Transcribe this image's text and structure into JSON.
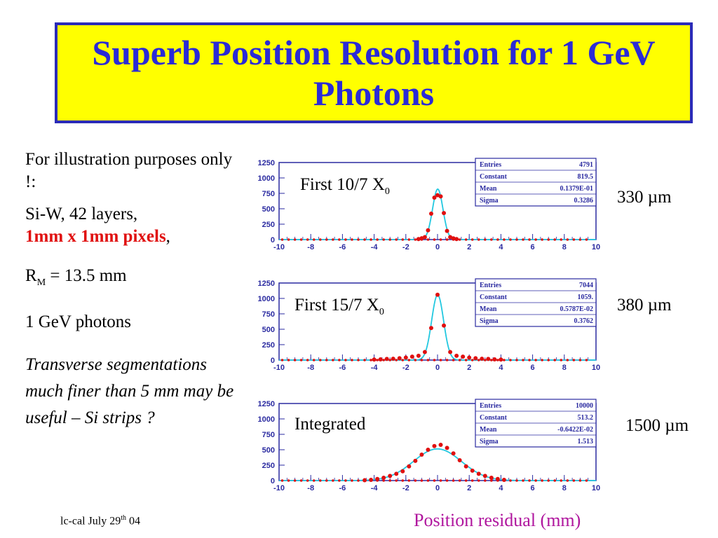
{
  "title": "Superb Position Resolution for 1 GeV Photons",
  "left": {
    "line1": "For illustration purposes only !:",
    "line2a": "Si-W, 42 layers,",
    "line2b": "1mm x 1mm pixels",
    "line2c": ",",
    "rm_label": "R",
    "rm_sub": "M",
    "rm_value": " = 13.5 mm",
    "photons": "1 GeV photons",
    "note": "Transverse segmentations much finer than 5 mm  may be useful – Si strips ?"
  },
  "footer": {
    "text": "lc-cal July 29",
    "sup": "th",
    "year": "  04"
  },
  "xaxis_label": "Position residual (mm)",
  "colors": {
    "title_bg": "#ffff00",
    "title_text": "#2b2bd6",
    "fit": "#22c8e0",
    "points": "#e01010",
    "axis": "#2a2aa0"
  },
  "chart_data": [
    {
      "type": "line",
      "label": "First 10/7 X",
      "label_sub": "0",
      "resolution": "330 µm",
      "xlim": [
        -10,
        10
      ],
      "ylim": [
        0,
        1250
      ],
      "x_ticks": [
        "-10",
        "-8",
        "-6",
        "-4",
        "-2",
        "0",
        "2",
        "4",
        "6",
        "8",
        "10"
      ],
      "y_ticks": [
        "0",
        "250",
        "500",
        "750",
        "1000",
        "1250"
      ],
      "stats": [
        [
          "Entries",
          "4791"
        ],
        [
          "Constant",
          "819.5"
        ],
        [
          "Mean",
          "0.1379E-01"
        ],
        [
          "Sigma",
          "0.3286"
        ]
      ],
      "fit": {
        "constant": 819.5,
        "mean": 0.0138,
        "sigma": 0.3286
      },
      "points": [
        [
          -1.2,
          8
        ],
        [
          -1.0,
          22
        ],
        [
          -0.8,
          40
        ],
        [
          -0.6,
          150
        ],
        [
          -0.4,
          420
        ],
        [
          -0.2,
          680
        ],
        [
          0.0,
          720
        ],
        [
          0.2,
          700
        ],
        [
          0.4,
          430
        ],
        [
          0.6,
          140
        ],
        [
          0.8,
          40
        ],
        [
          1.0,
          20
        ],
        [
          1.2,
          8
        ]
      ]
    },
    {
      "type": "line",
      "label": "First 15/7 X",
      "label_sub": "0",
      "resolution": "380 µm",
      "xlim": [
        -10,
        10
      ],
      "ylim": [
        0,
        1250
      ],
      "x_ticks": [
        "-10",
        "-8",
        "-6",
        "-4",
        "-2",
        "0",
        "2",
        "4",
        "6",
        "8",
        "10"
      ],
      "y_ticks": [
        "0",
        "250",
        "500",
        "750",
        "1000",
        "1250"
      ],
      "stats": [
        [
          "Entries",
          "7044"
        ],
        [
          "Constant",
          "1059."
        ],
        [
          "Mean",
          "0.5787E-02"
        ],
        [
          "Sigma",
          "0.3762"
        ]
      ],
      "fit": {
        "constant": 1059,
        "mean": 0.0058,
        "sigma": 0.3762
      },
      "points": [
        [
          -4.0,
          8
        ],
        [
          -3.6,
          12
        ],
        [
          -3.2,
          18
        ],
        [
          -2.8,
          22
        ],
        [
          -2.4,
          30
        ],
        [
          -2.0,
          40
        ],
        [
          -1.6,
          55
        ],
        [
          -1.2,
          70
        ],
        [
          -0.8,
          130
        ],
        [
          -0.4,
          520
        ],
        [
          0.0,
          1060
        ],
        [
          0.4,
          560
        ],
        [
          0.8,
          130
        ],
        [
          1.2,
          70
        ],
        [
          1.6,
          55
        ],
        [
          2.0,
          40
        ],
        [
          2.4,
          30
        ],
        [
          2.8,
          22
        ],
        [
          3.2,
          18
        ],
        [
          3.6,
          12
        ],
        [
          4.0,
          8
        ]
      ]
    },
    {
      "type": "line",
      "label": "Integrated",
      "label_sub": "",
      "resolution": "1500 µm",
      "xlim": [
        -10,
        10
      ],
      "ylim": [
        0,
        1250
      ],
      "x_ticks": [
        "-10",
        "-8",
        "-6",
        "-4",
        "-2",
        "0",
        "2",
        "4",
        "6",
        "8",
        "10"
      ],
      "y_ticks": [
        "0",
        "250",
        "500",
        "750",
        "1000",
        "1250"
      ],
      "stats": [
        [
          "Entries",
          "10000"
        ],
        [
          "Constant",
          "513.2"
        ],
        [
          "Mean",
          "-0.6422E-02"
        ],
        [
          "Sigma",
          "1.513"
        ]
      ],
      "fit": {
        "constant": 513.2,
        "mean": -0.0064,
        "sigma": 1.513
      },
      "points": [
        [
          -4.6,
          5
        ],
        [
          -4.2,
          12
        ],
        [
          -3.8,
          25
        ],
        [
          -3.4,
          45
        ],
        [
          -3.0,
          75
        ],
        [
          -2.6,
          110
        ],
        [
          -2.2,
          150
        ],
        [
          -1.8,
          230
        ],
        [
          -1.4,
          320
        ],
        [
          -1.0,
          420
        ],
        [
          -0.6,
          500
        ],
        [
          -0.2,
          560
        ],
        [
          0.2,
          580
        ],
        [
          0.6,
          530
        ],
        [
          1.0,
          440
        ],
        [
          1.4,
          330
        ],
        [
          1.8,
          230
        ],
        [
          2.2,
          160
        ],
        [
          2.6,
          110
        ],
        [
          3.0,
          75
        ],
        [
          3.4,
          45
        ],
        [
          3.8,
          25
        ],
        [
          4.2,
          12
        ]
      ]
    }
  ]
}
